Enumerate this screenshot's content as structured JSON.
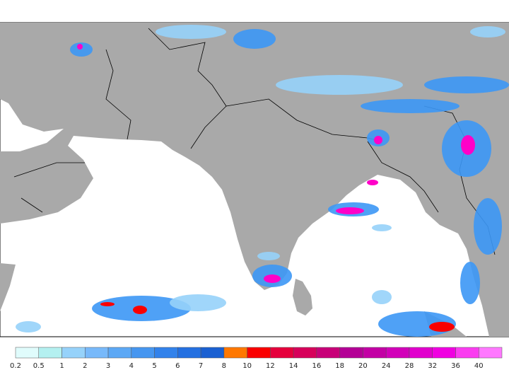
{
  "legend": {
    "levels": [
      0.2,
      0.5,
      1,
      2,
      3,
      4,
      5,
      6,
      7,
      8,
      10,
      12,
      14,
      16,
      18,
      20,
      24,
      28,
      32,
      36,
      40
    ],
    "colors": [
      "#e0fcfc",
      "#b4f0f0",
      "#96d2fa",
      "#78b9fa",
      "#5ca8f5",
      "#4696f0",
      "#3282eb",
      "#2470e1",
      "#1a60d2",
      "#ff7800",
      "#fa0000",
      "#e6003c",
      "#d7005a",
      "#c80078",
      "#b40096",
      "#c300a5",
      "#d200b9",
      "#e100cd",
      "#f000e1",
      "#fa3cf0",
      "#ff78ff"
    ]
  }
}
